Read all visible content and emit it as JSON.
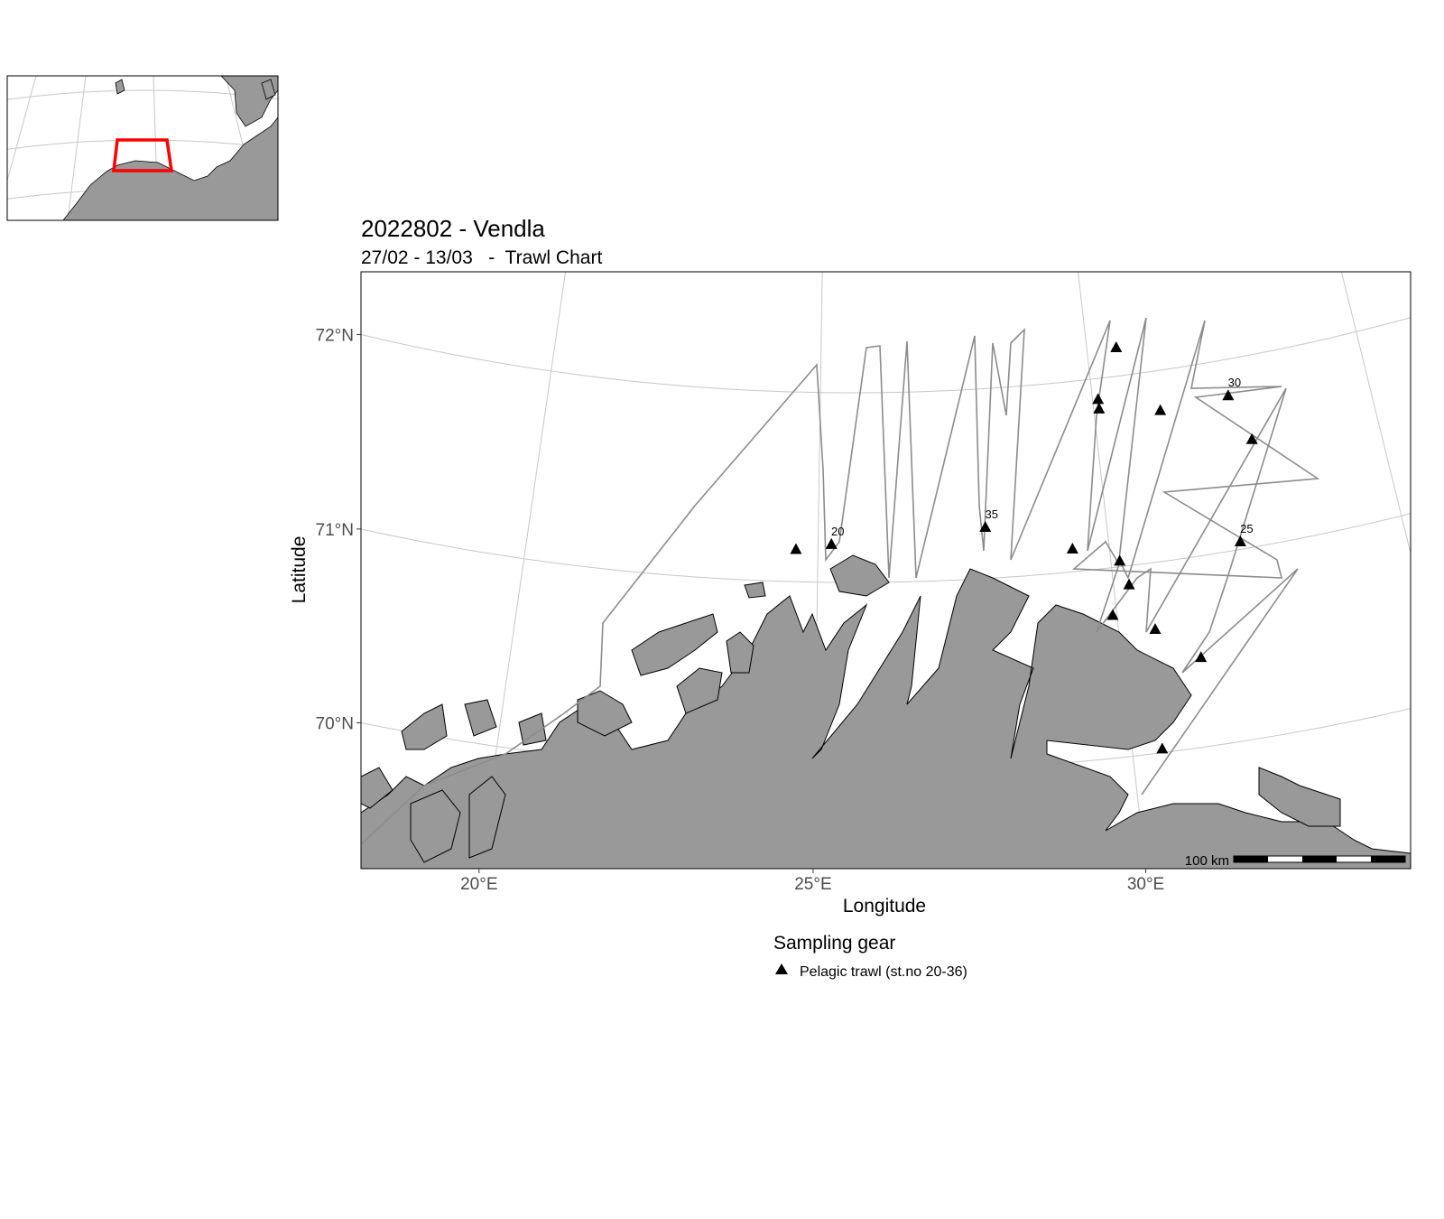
{
  "title": "2022802 - Vendla",
  "subtitle": "27/02 - 13/03   -  Trawl Chart",
  "x_axis": {
    "label": "Longitude",
    "ticks": [
      {
        "lon": 20,
        "label": "20°E"
      },
      {
        "lon": 25,
        "label": "25°E"
      },
      {
        "lon": 30,
        "label": "30°E"
      }
    ]
  },
  "y_axis": {
    "label": "Latitude",
    "ticks": [
      {
        "lat": 70,
        "label": "70°N"
      },
      {
        "lat": 71,
        "label": "71°N"
      },
      {
        "lat": 72,
        "label": "72°N"
      }
    ]
  },
  "legend": {
    "title": "Sampling gear",
    "items": [
      {
        "symbol": "triangle",
        "label": "Pelagic trawl (st.no 20-36)"
      }
    ]
  },
  "scale_bar": {
    "label": "100 km"
  },
  "colors": {
    "land": "#999999",
    "track": "#8c8c8c",
    "grid": "#c8c8c8",
    "marker": "#000000",
    "inset_box": "#ff0000"
  },
  "stations": [
    {
      "lon": 24.62,
      "lat": 71.17,
      "label": ""
    },
    {
      "lon": 25.23,
      "lat": 71.2,
      "label": "20"
    },
    {
      "lon": 27.9,
      "lat": 71.27,
      "label": "35"
    },
    {
      "lon": 29.37,
      "lat": 71.12,
      "label": ""
    },
    {
      "lon": 30.1,
      "lat": 71.89,
      "label": ""
    },
    {
      "lon": 30.1,
      "lat": 71.84,
      "label": ""
    },
    {
      "lon": 30.55,
      "lat": 72.15,
      "label": ""
    },
    {
      "lon": 31.2,
      "lat": 71.79,
      "label": ""
    },
    {
      "lon": 32.46,
      "lat": 71.81,
      "label": "30"
    },
    {
      "lon": 32.74,
      "lat": 71.56,
      "label": ""
    },
    {
      "lon": 32.23,
      "lat": 71.04,
      "label": "25"
    },
    {
      "lon": 30.15,
      "lat": 71.03,
      "label": ""
    },
    {
      "lon": 30.26,
      "lat": 70.9,
      "label": ""
    },
    {
      "lon": 29.93,
      "lat": 70.75,
      "label": ""
    },
    {
      "lon": 30.6,
      "lat": 70.65,
      "label": ""
    },
    {
      "lon": 31.28,
      "lat": 70.47,
      "label": ""
    },
    {
      "lon": 30.47,
      "lat": 70.02,
      "label": ""
    }
  ]
}
